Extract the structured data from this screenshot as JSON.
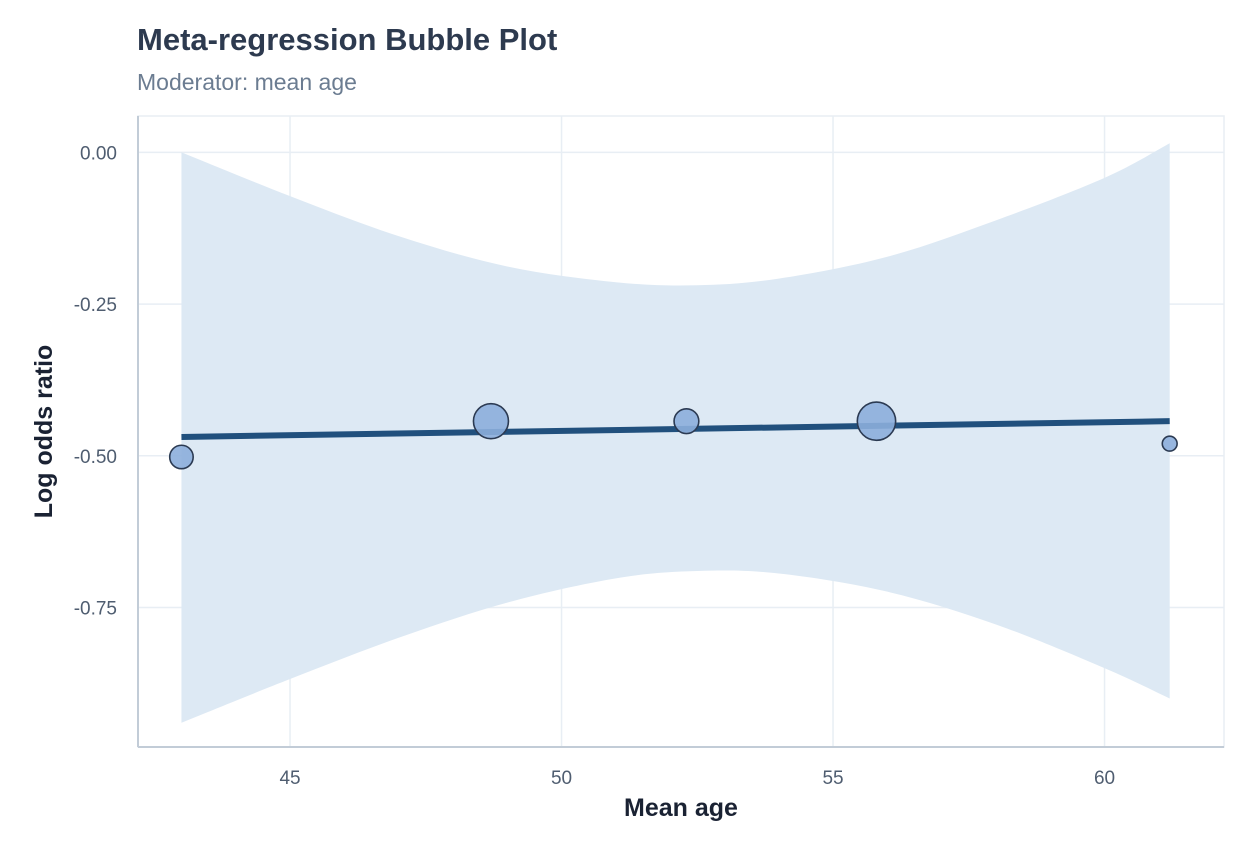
{
  "chart_data": {
    "type": "scatter",
    "title": "Meta-regression Bubble Plot",
    "subtitle": "Moderator: mean age",
    "xlabel": "Mean age",
    "ylabel": "Log odds ratio",
    "xlim": [
      42.2,
      62.2
    ],
    "ylim": [
      -0.98,
      0.06
    ],
    "x_ticks": [
      45,
      50,
      55,
      60
    ],
    "y_ticks": [
      0.0,
      -0.25,
      -0.5,
      -0.75
    ],
    "x_tick_labels": [
      "45",
      "50",
      "55",
      "60"
    ],
    "y_tick_labels": [
      "0.00",
      "-0.25",
      "-0.50",
      "-0.75"
    ],
    "grid": true,
    "points": [
      {
        "x": 43.0,
        "y": -0.502,
        "weight": 0.45
      },
      {
        "x": 48.7,
        "y": -0.443,
        "weight": 1.0
      },
      {
        "x": 52.3,
        "y": -0.443,
        "weight": 0.5
      },
      {
        "x": 55.8,
        "y": -0.443,
        "weight": 1.2
      },
      {
        "x": 61.2,
        "y": -0.48,
        "weight": 0.18
      }
    ],
    "regression_line": {
      "x": [
        43.0,
        61.2
      ],
      "y": [
        -0.469,
        -0.443
      ]
    },
    "confidence_band": {
      "x": [
        43.0,
        45.0,
        47.0,
        49.0,
        51.0,
        52.5,
        54.0,
        56.0,
        58.0,
        60.0,
        61.2
      ],
      "upper": [
        0.0,
        -0.072,
        -0.138,
        -0.188,
        -0.214,
        -0.219,
        -0.208,
        -0.172,
        -0.112,
        -0.042,
        0.015
      ],
      "lower": [
        -0.94,
        -0.868,
        -0.8,
        -0.742,
        -0.702,
        -0.69,
        -0.694,
        -0.724,
        -0.778,
        -0.85,
        -0.9
      ]
    },
    "colors": {
      "band": "#dde9f4",
      "line": "#21507d",
      "point_fill": "#8caedb",
      "point_stroke": "#2b3a52",
      "grid": "#e8eef4",
      "axis": "#c2ccd7"
    }
  }
}
